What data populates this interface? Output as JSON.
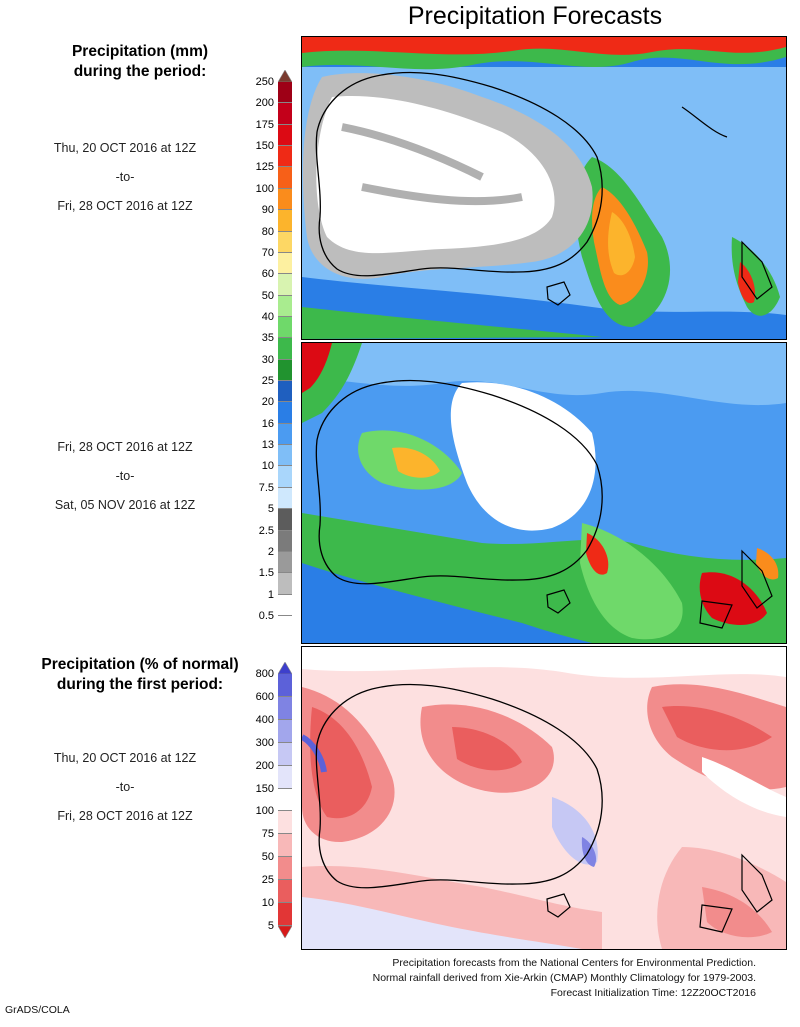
{
  "title": "Precipitation Forecasts",
  "top_section": {
    "heading_line1": "Precipitation (mm)",
    "heading_line2": "during the period:",
    "period1": [
      "Thu, 20 OCT 2016 at 12Z",
      "-to-",
      "Fri, 28 OCT 2016 at 12Z"
    ],
    "period2": [
      "Fri, 28 OCT 2016 at 12Z",
      "-to-",
      "Sat, 05 NOV 2016 at 12Z"
    ],
    "colorbar": {
      "labels": [
        "250",
        "200",
        "175",
        "150",
        "125",
        "100",
        "90",
        "80",
        "70",
        "60",
        "50",
        "40",
        "35",
        "30",
        "25",
        "20",
        "16",
        "13",
        "10",
        "7.5",
        "5",
        "2.5",
        "2",
        "1.5",
        "1",
        "0.5"
      ],
      "colors": [
        "#7a3b2f",
        "#9e0016",
        "#c3001a",
        "#dc0a14",
        "#ef2a16",
        "#f76018",
        "#fa8c1c",
        "#fcb42c",
        "#fdd764",
        "#fdf0a0",
        "#d8f3b0",
        "#a9ec8f",
        "#6fd96a",
        "#3db94b",
        "#21932f",
        "#1f5fbf",
        "#2a7ee6",
        "#4b9bf1",
        "#7fbef7",
        "#a9d6fb",
        "#cfe8fd",
        "#5c5c5c",
        "#7b7b7b",
        "#9a9a9a",
        "#bdbdbd",
        "#ffffff"
      ]
    }
  },
  "bottom_section": {
    "heading_line1": "Precipitation (% of normal)",
    "heading_line2": "during the first period:",
    "period": [
      "Thu, 20 OCT 2016 at 12Z",
      "-to-",
      "Fri, 28 OCT 2016 at 12Z"
    ],
    "colorbar": {
      "labels": [
        "800",
        "600",
        "400",
        "300",
        "200",
        "150",
        "100",
        "75",
        "50",
        "25",
        "10",
        "5"
      ],
      "colors": [
        "#3d3fcc",
        "#5c61d9",
        "#7f83e3",
        "#a2a6ec",
        "#c6c8f4",
        "#e3e4fa",
        "#ffffff",
        "#fde0e0",
        "#f8b8b8",
        "#f28c8c",
        "#ea5e5e",
        "#e23636",
        "#d71a1a"
      ]
    }
  },
  "footer": {
    "line1": "Precipitation forecasts from the National Centers for Environmental Prediction.",
    "line2": "Normal rainfall derived from Xie-Arkin (CMAP) Monthly Climatology for 1979-2003.",
    "line3": "Forecast Initialization Time: 12Z20OCT2016"
  },
  "credit": "GrADS/COLA"
}
